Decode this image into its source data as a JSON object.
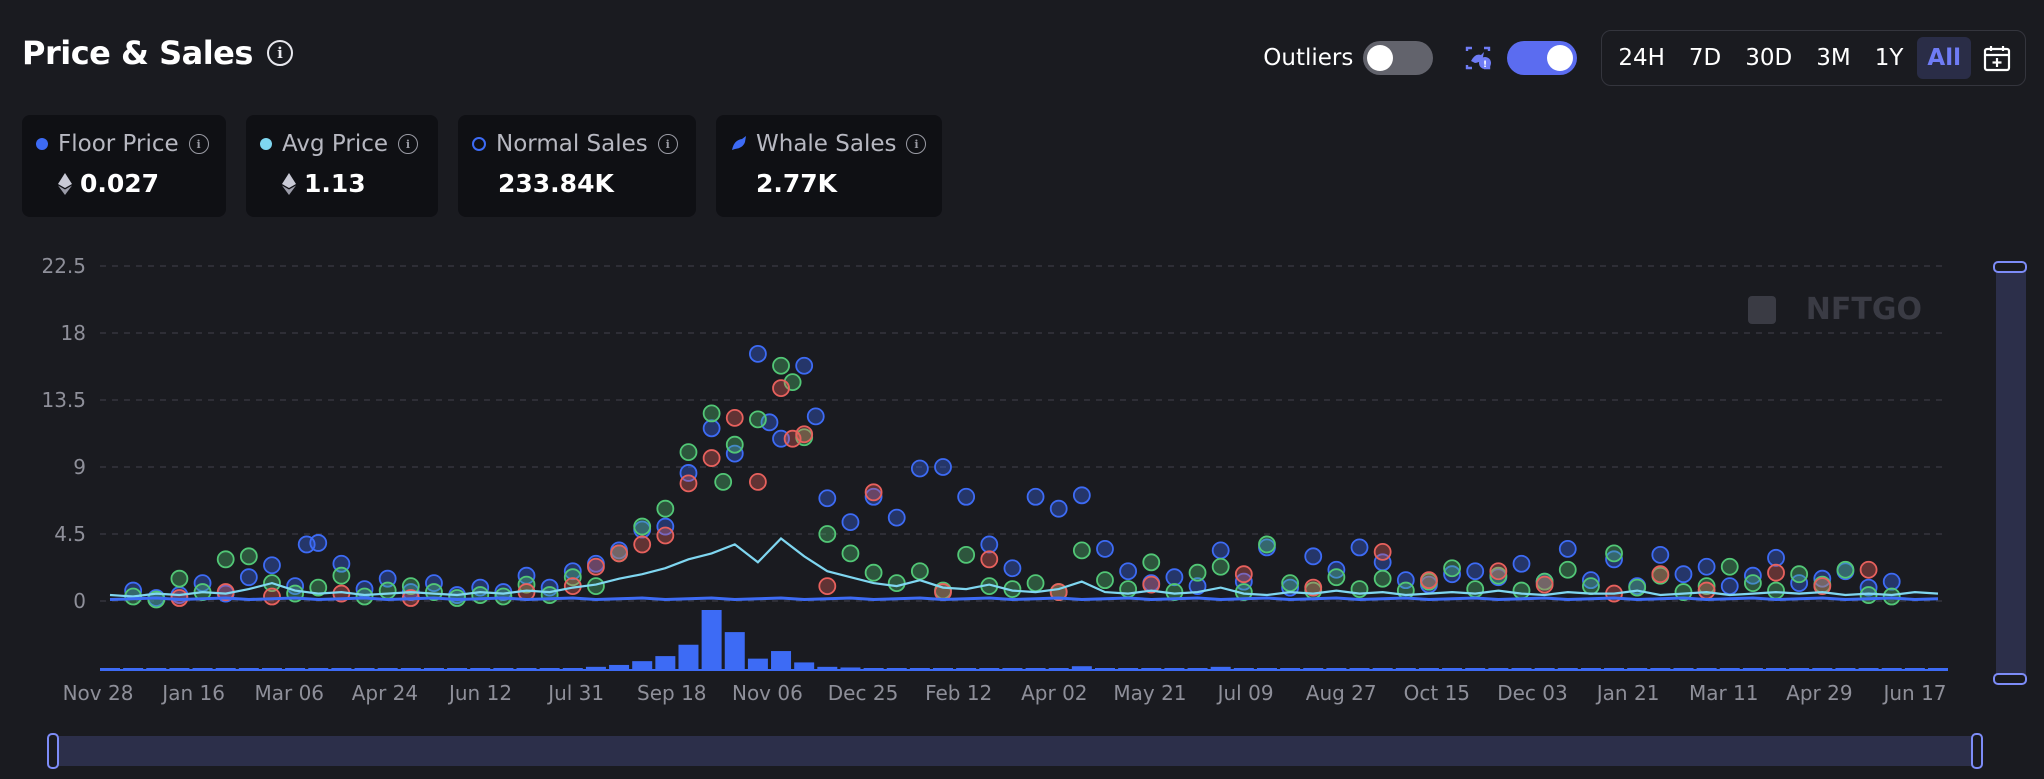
{
  "header": {
    "title": "Price & Sales"
  },
  "controls": {
    "outliers_label": "Outliers",
    "outliers_on": false,
    "whale_toggle_on": true,
    "ranges": [
      "24H",
      "7D",
      "30D",
      "3M",
      "1Y",
      "All"
    ],
    "active_range": "All"
  },
  "cards": [
    {
      "label": "Floor Price",
      "value": "0.027",
      "marker": "dot",
      "color": "#3d6bf5",
      "eth": true
    },
    {
      "label": "Avg Price",
      "value": "1.13",
      "marker": "dot",
      "color": "#7fd6f0",
      "eth": true
    },
    {
      "label": "Normal Sales",
      "value": "233.84K",
      "marker": "ring",
      "color": "#3d6bf5",
      "eth": false
    },
    {
      "label": "Whale Sales",
      "value": "2.77K",
      "marker": "whale",
      "color": "#3d6bf5",
      "eth": false
    }
  ],
  "chart_data": {
    "type": "scatter",
    "title": "",
    "watermark": "NFTGO",
    "y_ticks": [
      "0",
      "4.5",
      "9",
      "13.5",
      "18",
      "22.5"
    ],
    "ylim": [
      0,
      22.5
    ],
    "x_tick_labels": [
      "Nov 28",
      "Jan 16",
      "Mar 06",
      "Apr 24",
      "Jun 12",
      "Jul 31",
      "Sep 18",
      "Nov 06",
      "Dec 25",
      "Feb 12",
      "Apr 02",
      "May 21",
      "Jul 09",
      "Aug 27",
      "Oct 15",
      "Dec 03",
      "Jan 21",
      "Mar 11",
      "Apr 29",
      "Jun 17"
    ],
    "grid": "horizontal dashed",
    "colors": {
      "normal": "#3d6bf5",
      "up": "#52c776",
      "down": "#e8615d",
      "avg": "#7fd6f0",
      "volume": "#3d6bf5"
    },
    "avg_price_line": [
      0.4,
      0.3,
      0.5,
      0.4,
      0.6,
      0.5,
      0.8,
      1.2,
      0.7,
      0.5,
      0.6,
      0.4,
      0.5,
      0.6,
      0.5,
      0.4,
      0.6,
      0.5,
      0.7,
      0.6,
      0.9,
      1.1,
      1.5,
      1.8,
      2.2,
      2.8,
      3.2,
      3.8,
      2.6,
      4.2,
      3.0,
      2.0,
      1.6,
      1.2,
      1.0,
      1.4,
      0.9,
      0.8,
      1.1,
      0.7,
      0.6,
      0.8,
      1.3,
      0.6,
      0.5,
      0.7,
      0.5,
      0.6,
      0.9,
      0.5,
      0.4,
      0.6,
      0.5,
      0.7,
      0.5,
      0.6,
      0.4,
      0.5,
      0.6,
      0.5,
      0.7,
      0.5,
      0.4,
      0.6,
      0.5,
      0.5,
      0.7,
      0.4,
      0.5,
      0.6,
      0.4,
      0.5,
      0.6,
      0.5,
      0.6,
      0.4,
      0.5,
      0.4,
      0.6,
      0.5
    ],
    "volume_bars": [
      1,
      1,
      2,
      1,
      2,
      1,
      2,
      3,
      2,
      1,
      2,
      1,
      1,
      2,
      1,
      1,
      2,
      1,
      2,
      2,
      3,
      5,
      8,
      14,
      22,
      40,
      95,
      60,
      18,
      30,
      12,
      5,
      4,
      3,
      2,
      3,
      2,
      2,
      3,
      2,
      1,
      2,
      6,
      1,
      1,
      2,
      1,
      1,
      5,
      1,
      1,
      2,
      1,
      1,
      1,
      2,
      1,
      1,
      2,
      1,
      2,
      1,
      1,
      2,
      1,
      1,
      2,
      1,
      1,
      2,
      1,
      1,
      2,
      1,
      1,
      1,
      2,
      1,
      1,
      1
    ],
    "normal_sales": [
      [
        1,
        0.7
      ],
      [
        2,
        0.2
      ],
      [
        3,
        0.4
      ],
      [
        4,
        1.2
      ],
      [
        5,
        0.5
      ],
      [
        6,
        1.6
      ],
      [
        7,
        2.4
      ],
      [
        8,
        1.0
      ],
      [
        8.5,
        3.8
      ],
      [
        9,
        3.9
      ],
      [
        10,
        2.5
      ],
      [
        11,
        0.8
      ],
      [
        12,
        1.5
      ],
      [
        13,
        0.6
      ],
      [
        14,
        1.2
      ],
      [
        15,
        0.4
      ],
      [
        16,
        0.9
      ],
      [
        17,
        0.6
      ],
      [
        18,
        1.7
      ],
      [
        19,
        0.9
      ],
      [
        20,
        2.0
      ],
      [
        21,
        2.5
      ],
      [
        22,
        3.4
      ],
      [
        23,
        4.8
      ],
      [
        24,
        5.0
      ],
      [
        25,
        8.6
      ],
      [
        26,
        11.6
      ],
      [
        27,
        9.9
      ],
      [
        28,
        16.6
      ],
      [
        28.5,
        12.0
      ],
      [
        29,
        10.9
      ],
      [
        30,
        15.8
      ],
      [
        30.5,
        12.4
      ],
      [
        31,
        6.9
      ],
      [
        32,
        5.3
      ],
      [
        33,
        7.0
      ],
      [
        34,
        5.6
      ],
      [
        35,
        8.9
      ],
      [
        36,
        9.0
      ],
      [
        37,
        7.0
      ],
      [
        38,
        3.8
      ],
      [
        39,
        2.2
      ],
      [
        40,
        7.0
      ],
      [
        41,
        6.2
      ],
      [
        42,
        7.1
      ],
      [
        43,
        3.5
      ],
      [
        44,
        2.0
      ],
      [
        45,
        1.2
      ],
      [
        46,
        1.6
      ],
      [
        47,
        1.0
      ],
      [
        48,
        3.4
      ],
      [
        49,
        1.3
      ],
      [
        50,
        3.6
      ],
      [
        51,
        0.9
      ],
      [
        52,
        3.0
      ],
      [
        53,
        2.1
      ],
      [
        54,
        3.6
      ],
      [
        55,
        2.6
      ],
      [
        56,
        1.4
      ],
      [
        57,
        1.1
      ],
      [
        58,
        1.8
      ],
      [
        59,
        2.0
      ],
      [
        60,
        1.6
      ],
      [
        61,
        2.5
      ],
      [
        62,
        1.3
      ],
      [
        63,
        3.5
      ],
      [
        64,
        1.4
      ],
      [
        65,
        2.8
      ],
      [
        66,
        1.0
      ],
      [
        67,
        3.1
      ],
      [
        68,
        1.8
      ],
      [
        69,
        2.3
      ],
      [
        70,
        1.0
      ],
      [
        71,
        1.7
      ],
      [
        72,
        2.9
      ],
      [
        73,
        1.2
      ],
      [
        74,
        1.5
      ],
      [
        75,
        2.0
      ],
      [
        76,
        0.9
      ],
      [
        77,
        1.3
      ]
    ],
    "up_sales": [
      [
        1,
        0.3
      ],
      [
        2,
        0.1
      ],
      [
        3,
        1.5
      ],
      [
        4,
        0.6
      ],
      [
        5,
        2.8
      ],
      [
        6,
        3.0
      ],
      [
        7,
        1.2
      ],
      [
        8,
        0.5
      ],
      [
        9,
        0.9
      ],
      [
        10,
        1.7
      ],
      [
        11,
        0.3
      ],
      [
        12,
        0.7
      ],
      [
        13,
        1.0
      ],
      [
        14,
        0.6
      ],
      [
        15,
        0.2
      ],
      [
        16,
        0.4
      ],
      [
        17,
        0.3
      ],
      [
        18,
        1.1
      ],
      [
        19,
        0.4
      ],
      [
        20,
        1.6
      ],
      [
        21,
        1.0
      ],
      [
        22,
        3.2
      ],
      [
        23,
        5.0
      ],
      [
        24,
        6.2
      ],
      [
        25,
        10.0
      ],
      [
        26,
        12.6
      ],
      [
        26.5,
        8.0
      ],
      [
        27,
        10.5
      ],
      [
        28,
        12.2
      ],
      [
        29,
        15.8
      ],
      [
        29.5,
        14.7
      ],
      [
        30,
        11.0
      ],
      [
        31,
        4.5
      ],
      [
        32,
        3.2
      ],
      [
        33,
        1.9
      ],
      [
        34,
        1.2
      ],
      [
        35,
        2.0
      ],
      [
        36,
        0.7
      ],
      [
        37,
        3.1
      ],
      [
        38,
        1.0
      ],
      [
        39,
        0.8
      ],
      [
        40,
        1.2
      ],
      [
        41,
        0.6
      ],
      [
        42,
        3.4
      ],
      [
        43,
        1.4
      ],
      [
        44,
        0.8
      ],
      [
        45,
        2.6
      ],
      [
        46,
        0.6
      ],
      [
        47,
        1.9
      ],
      [
        48,
        2.3
      ],
      [
        49,
        0.6
      ],
      [
        50,
        3.8
      ],
      [
        51,
        1.2
      ],
      [
        52,
        0.7
      ],
      [
        53,
        1.6
      ],
      [
        54,
        0.8
      ],
      [
        55,
        1.5
      ],
      [
        56,
        0.7
      ],
      [
        57,
        1.3
      ],
      [
        58,
        2.2
      ],
      [
        59,
        0.8
      ],
      [
        60,
        1.7
      ],
      [
        61,
        0.7
      ],
      [
        62,
        1.3
      ],
      [
        63,
        2.1
      ],
      [
        64,
        1.0
      ],
      [
        65,
        3.2
      ],
      [
        66,
        0.9
      ],
      [
        67,
        1.7
      ],
      [
        68,
        0.6
      ],
      [
        69,
        1.0
      ],
      [
        70,
        2.3
      ],
      [
        71,
        1.2
      ],
      [
        72,
        0.7
      ],
      [
        73,
        1.8
      ],
      [
        74,
        1.1
      ],
      [
        75,
        2.1
      ],
      [
        76,
        0.4
      ],
      [
        77,
        0.3
      ]
    ],
    "down_sales": [
      [
        3,
        0.2
      ],
      [
        5,
        0.6
      ],
      [
        7,
        0.3
      ],
      [
        10,
        0.5
      ],
      [
        13,
        0.2
      ],
      [
        18,
        0.6
      ],
      [
        20,
        1.0
      ],
      [
        21,
        2.3
      ],
      [
        22,
        3.2
      ],
      [
        23,
        3.8
      ],
      [
        24,
        4.4
      ],
      [
        25,
        7.9
      ],
      [
        26,
        9.6
      ],
      [
        27,
        12.3
      ],
      [
        28,
        8.0
      ],
      [
        29,
        14.3
      ],
      [
        29.5,
        10.9
      ],
      [
        30,
        11.2
      ],
      [
        31,
        1.0
      ],
      [
        33,
        7.3
      ],
      [
        36,
        0.6
      ],
      [
        38,
        2.8
      ],
      [
        41,
        0.6
      ],
      [
        45,
        1.1
      ],
      [
        49,
        1.8
      ],
      [
        52,
        0.9
      ],
      [
        55,
        3.3
      ],
      [
        57,
        1.4
      ],
      [
        60,
        2.0
      ],
      [
        62,
        1.1
      ],
      [
        65,
        0.5
      ],
      [
        67,
        1.8
      ],
      [
        69,
        0.7
      ],
      [
        72,
        1.9
      ],
      [
        74,
        1.0
      ],
      [
        76,
        2.1
      ]
    ]
  }
}
